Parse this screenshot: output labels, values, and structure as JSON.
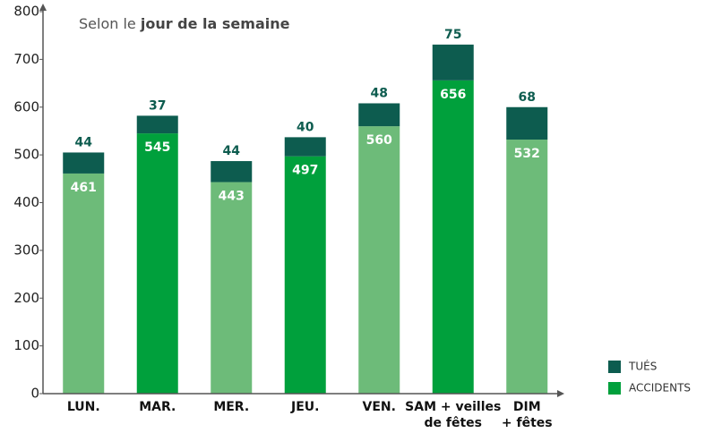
{
  "chart_data": {
    "type": "stacked_bar",
    "title": {
      "prefix": "Selon le",
      "bold": "jour de la semaine"
    },
    "categories": [
      "LUN.",
      "MAR.",
      "MER.",
      "JEU.",
      "VEN.",
      [
        "SAM + veilles",
        "de fêtes"
      ],
      [
        "DIM",
        "+ fêtes"
      ]
    ],
    "series": [
      {
        "name": "ACCIDENTS",
        "color": "#00a03c",
        "colors": [
          "#6dbb79",
          "#00a03c",
          "#6dbb79",
          "#00a03c",
          "#6dbb79",
          "#00a03c",
          "#6dbb79"
        ],
        "values": [
          461,
          545,
          443,
          497,
          560,
          656,
          532
        ]
      },
      {
        "name": "TUÉS",
        "color": "#0d5c4f",
        "values": [
          44,
          37,
          44,
          40,
          48,
          75,
          68
        ]
      }
    ],
    "ylim": [
      0,
      800
    ],
    "yticks": [
      0,
      100,
      200,
      300,
      400,
      500,
      600,
      700,
      800
    ]
  }
}
